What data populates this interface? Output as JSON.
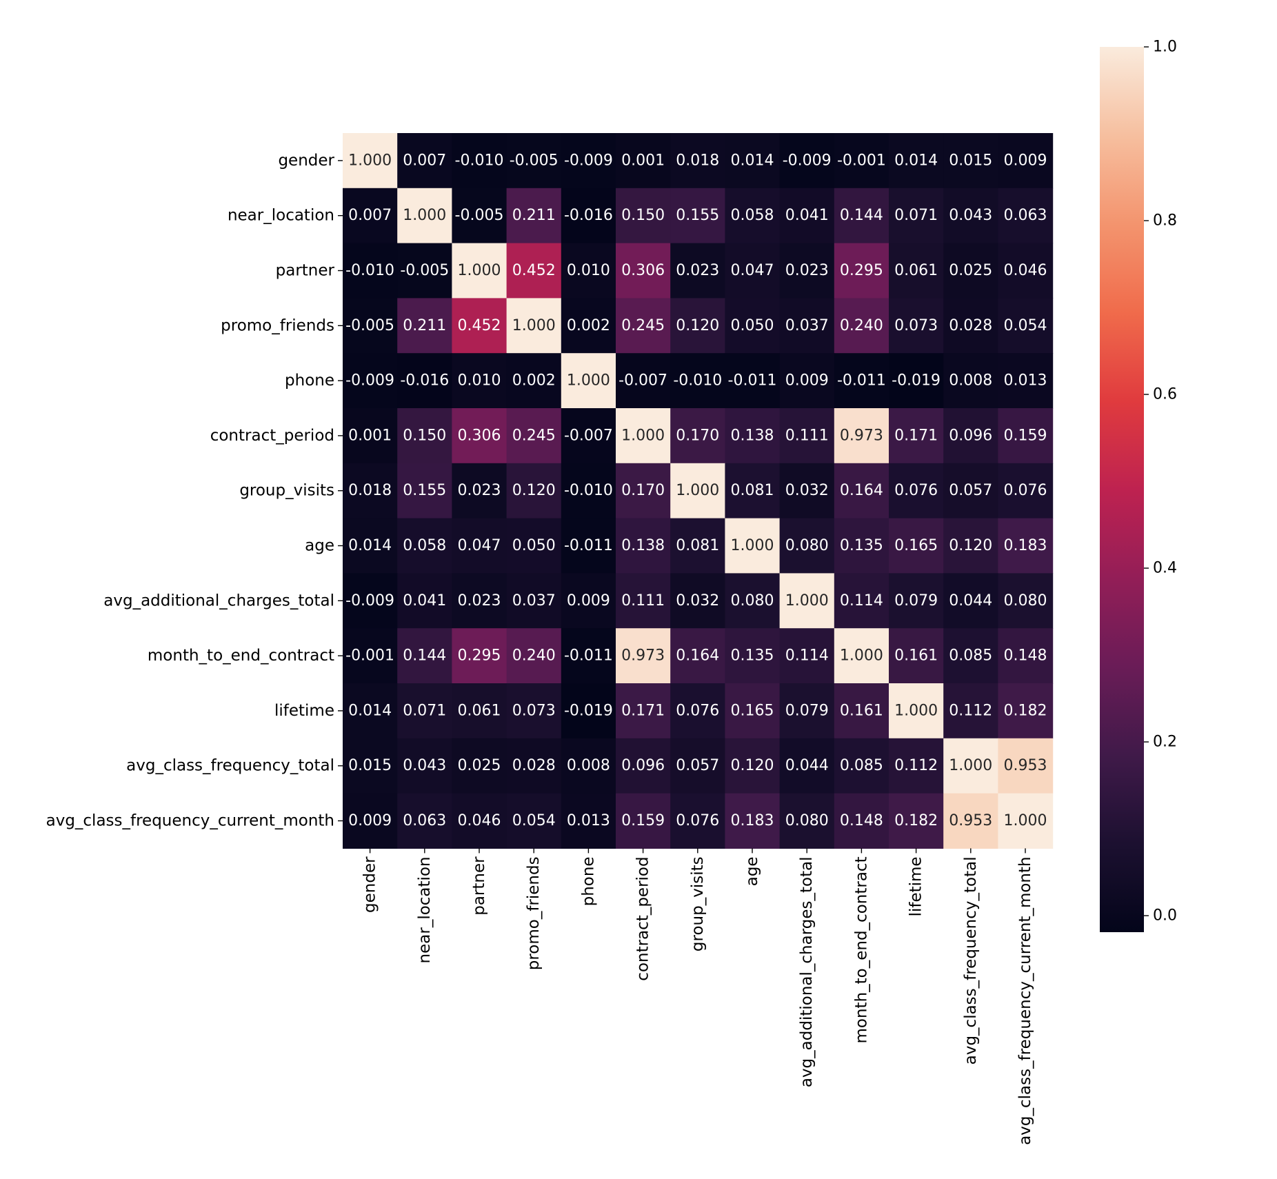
{
  "chart_data": {
    "type": "heatmap",
    "title": "",
    "xlabel": "",
    "ylabel": "",
    "colormap": "rocket",
    "vmin": -0.019,
    "vmax": 1.0,
    "value_format": "0.000",
    "labels": [
      "gender",
      "near_location",
      "partner",
      "promo_friends",
      "phone",
      "contract_period",
      "group_visits",
      "age",
      "avg_additional_charges_total",
      "month_to_end_contract",
      "lifetime",
      "avg_class_frequency_total",
      "avg_class_frequency_current_month"
    ],
    "matrix": [
      [
        1.0,
        0.007,
        -0.01,
        -0.005,
        -0.009,
        0.001,
        0.018,
        0.014,
        -0.009,
        -0.001,
        0.014,
        0.015,
        0.009
      ],
      [
        0.007,
        1.0,
        -0.005,
        0.211,
        -0.016,
        0.15,
        0.155,
        0.058,
        0.041,
        0.144,
        0.071,
        0.043,
        0.063
      ],
      [
        -0.01,
        -0.005,
        1.0,
        0.452,
        0.01,
        0.306,
        0.023,
        0.047,
        0.023,
        0.295,
        0.061,
        0.025,
        0.046
      ],
      [
        -0.005,
        0.211,
        0.452,
        1.0,
        0.002,
        0.245,
        0.12,
        0.05,
        0.037,
        0.24,
        0.073,
        0.028,
        0.054
      ],
      [
        -0.009,
        -0.016,
        0.01,
        0.002,
        1.0,
        -0.007,
        -0.01,
        -0.011,
        0.009,
        -0.011,
        -0.019,
        0.008,
        0.013
      ],
      [
        0.001,
        0.15,
        0.306,
        0.245,
        -0.007,
        1.0,
        0.17,
        0.138,
        0.111,
        0.973,
        0.171,
        0.096,
        0.159
      ],
      [
        0.018,
        0.155,
        0.023,
        0.12,
        -0.01,
        0.17,
        1.0,
        0.081,
        0.032,
        0.164,
        0.076,
        0.057,
        0.076
      ],
      [
        0.014,
        0.058,
        0.047,
        0.05,
        -0.011,
        0.138,
        0.081,
        1.0,
        0.08,
        0.135,
        0.165,
        0.12,
        0.183
      ],
      [
        -0.009,
        0.041,
        0.023,
        0.037,
        0.009,
        0.111,
        0.032,
        0.08,
        1.0,
        0.114,
        0.079,
        0.044,
        0.08
      ],
      [
        -0.001,
        0.144,
        0.295,
        0.24,
        -0.011,
        0.973,
        0.164,
        0.135,
        0.114,
        1.0,
        0.161,
        0.085,
        0.148
      ],
      [
        0.014,
        0.071,
        0.061,
        0.073,
        -0.019,
        0.171,
        0.076,
        0.165,
        0.079,
        0.161,
        1.0,
        0.112,
        0.182
      ],
      [
        0.015,
        0.043,
        0.025,
        0.028,
        0.008,
        0.096,
        0.057,
        0.12,
        0.044,
        0.085,
        0.112,
        1.0,
        0.953
      ],
      [
        0.009,
        0.063,
        0.046,
        0.054,
        0.013,
        0.159,
        0.076,
        0.183,
        0.08,
        0.148,
        0.182,
        0.953,
        1.0
      ]
    ],
    "colorbar": {
      "ticks": [
        0.0,
        0.2,
        0.4,
        0.6,
        0.8,
        1.0
      ],
      "tick_labels": [
        "0.0",
        "0.2",
        "0.4",
        "0.6",
        "0.8",
        "1.0"
      ]
    }
  }
}
